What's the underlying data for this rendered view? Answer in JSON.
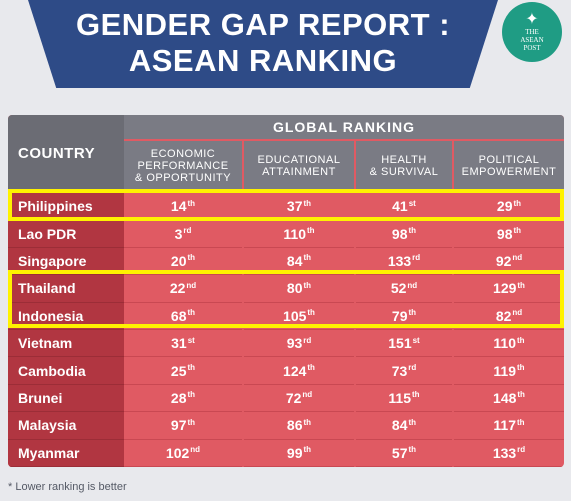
{
  "header": {
    "title_line1": "GENDER GAP REPORT :",
    "title_line2": "ASEAN RANKING",
    "logo_top": "THE",
    "logo_mid": "ASEAN",
    "logo_bottom": "POST"
  },
  "table": {
    "country_header": "COUNTRY",
    "global_header": "GLOBAL RANKING",
    "columns": [
      "ECONOMIC\nPERFORMANCE\n& OPPORTUNITY",
      "EDUCATIONAL\nATTAINMENT",
      "HEALTH\n& SURVIVAL",
      "POLITICAL\nEMPOWERMENT"
    ],
    "rows": [
      {
        "country": "Philippines",
        "cells": [
          [
            "14",
            "th"
          ],
          [
            "37",
            "th"
          ],
          [
            "41",
            "st"
          ],
          [
            "29",
            "th"
          ]
        ]
      },
      {
        "country": "Lao PDR",
        "cells": [
          [
            "3",
            "rd"
          ],
          [
            "110",
            "th"
          ],
          [
            "98",
            "th"
          ],
          [
            "98",
            "th"
          ]
        ]
      },
      {
        "country": "Singapore",
        "cells": [
          [
            "20",
            "th"
          ],
          [
            "84",
            "th"
          ],
          [
            "133",
            "rd"
          ],
          [
            "92",
            "nd"
          ]
        ]
      },
      {
        "country": "Thailand",
        "cells": [
          [
            "22",
            "nd"
          ],
          [
            "80",
            "th"
          ],
          [
            "52",
            "nd"
          ],
          [
            "129",
            "th"
          ]
        ]
      },
      {
        "country": "Indonesia",
        "cells": [
          [
            "68",
            "th"
          ],
          [
            "105",
            "th"
          ],
          [
            "79",
            "th"
          ],
          [
            "82",
            "nd"
          ]
        ]
      },
      {
        "country": "Vietnam",
        "cells": [
          [
            "31",
            "st"
          ],
          [
            "93",
            "rd"
          ],
          [
            "151",
            "st"
          ],
          [
            "110",
            "th"
          ]
        ]
      },
      {
        "country": "Cambodia",
        "cells": [
          [
            "25",
            "th"
          ],
          [
            "124",
            "th"
          ],
          [
            "73",
            "rd"
          ],
          [
            "119",
            "th"
          ]
        ]
      },
      {
        "country": "Brunei",
        "cells": [
          [
            "28",
            "th"
          ],
          [
            "72",
            "nd"
          ],
          [
            "115",
            "th"
          ],
          [
            "148",
            "th"
          ]
        ]
      },
      {
        "country": "Malaysia",
        "cells": [
          [
            "97",
            "th"
          ],
          [
            "86",
            "th"
          ],
          [
            "84",
            "th"
          ],
          [
            "117",
            "th"
          ]
        ]
      },
      {
        "country": "Myanmar",
        "cells": [
          [
            "102",
            "nd"
          ],
          [
            "99",
            "th"
          ],
          [
            "57",
            "th"
          ],
          [
            "133",
            "rd"
          ]
        ]
      }
    ],
    "highlighted": [
      "Philippines",
      "Thailand",
      "Indonesia"
    ],
    "highlight_color": "#fff200"
  },
  "footnote": "* Lower ranking is better"
}
